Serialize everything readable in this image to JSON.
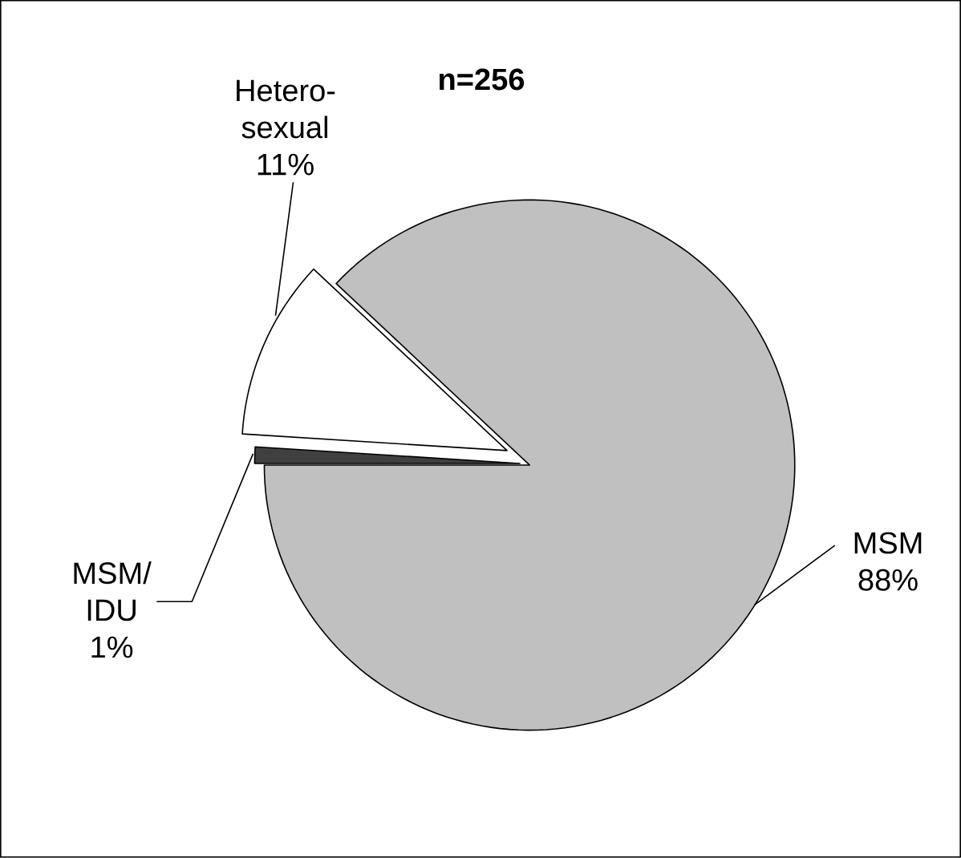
{
  "chart_data": {
    "type": "pie",
    "title": "n=256",
    "categories": [
      "MSM",
      "Hetero-sexual",
      "MSM/IDU"
    ],
    "values": [
      88,
      11,
      1
    ],
    "value_labels": [
      "88%",
      "11%",
      "1%"
    ],
    "colors": [
      "#c0c0c0",
      "#ffffff",
      "#404040"
    ]
  }
}
